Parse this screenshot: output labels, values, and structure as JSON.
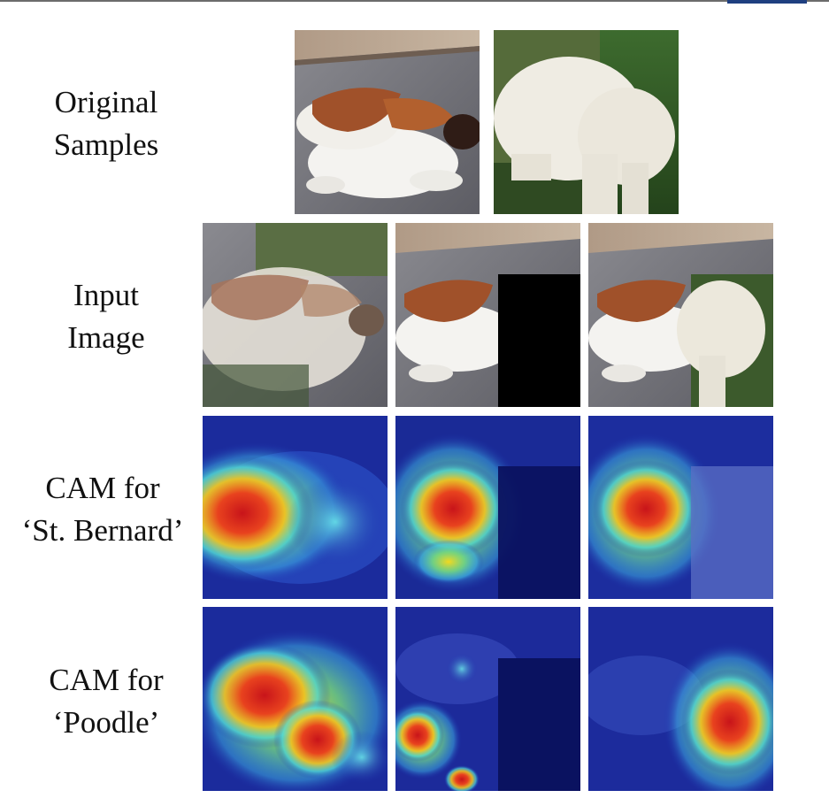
{
  "figure": {
    "rows": [
      {
        "id": "original-samples",
        "label_lines": [
          "Original",
          "Samples"
        ]
      },
      {
        "id": "input-image",
        "label_lines": [
          "Input",
          "Image"
        ]
      },
      {
        "id": "cam-st-bernard",
        "label_lines": [
          "CAM for",
          "‘St. Bernard’"
        ]
      },
      {
        "id": "cam-poodle",
        "label_lines": [
          "CAM for",
          "‘Poodle’"
        ]
      }
    ]
  }
}
